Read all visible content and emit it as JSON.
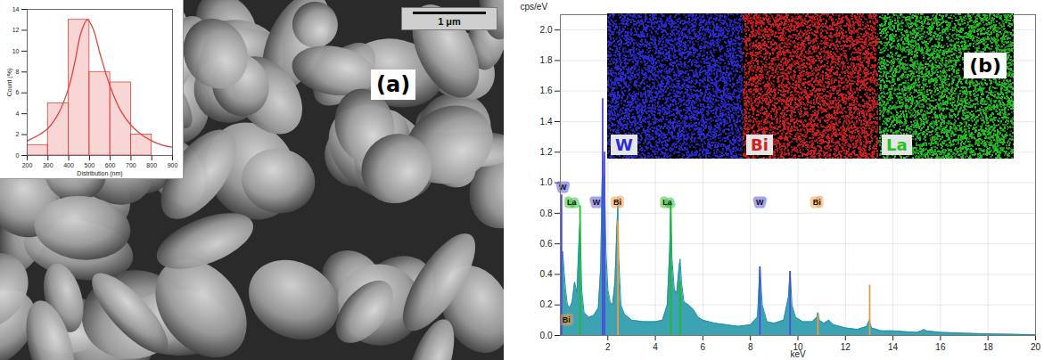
{
  "panels": [
    {
      "label": "(a)",
      "scale_bar": "1 μm"
    },
    {
      "label": "(b)",
      "maps": [
        {
          "element": "W",
          "color": "#2b2bd6"
        },
        {
          "element": "Bi",
          "color": "#d42020"
        },
        {
          "element": "La",
          "color": "#22c422"
        }
      ]
    }
  ],
  "chart_data": [
    {
      "type": "histogram",
      "x_label": "Distribution (nm)",
      "y_label": "Count (%)",
      "bins": [
        200,
        300,
        400,
        500,
        600,
        700,
        800,
        900
      ],
      "values": [
        1,
        5,
        13,
        8,
        7,
        2,
        0
      ],
      "color": "#e0443e",
      "fit": {
        "x": [
          200,
          250,
          300,
          350,
          400,
          430,
          460,
          490,
          520,
          550,
          600,
          650,
          700,
          750,
          800,
          850,
          900
        ],
        "values": [
          1.4,
          1.9,
          2.6,
          4.0,
          6.5,
          9.0,
          11.8,
          13.0,
          12.0,
          9.8,
          6.6,
          4.3,
          2.9,
          2.0,
          1.4,
          1.0,
          0.8
        ]
      },
      "xlim": [
        200,
        900
      ],
      "ylim": [
        0,
        14
      ],
      "xticks": [
        200,
        300,
        400,
        500,
        600,
        700,
        800,
        900
      ],
      "yticks": [
        0,
        2,
        4,
        6,
        8,
        10,
        12,
        14
      ]
    },
    {
      "type": "area",
      "x_label": "keV",
      "y_label": "cps/eV",
      "x": [
        0.05,
        0.1,
        0.17,
        0.22,
        0.3,
        0.4,
        0.5,
        0.6,
        0.7,
        0.78,
        0.83,
        0.9,
        1.0,
        1.2,
        1.4,
        1.6,
        1.7,
        1.75,
        1.78,
        1.82,
        1.86,
        1.92,
        2.0,
        2.1,
        2.2,
        2.3,
        2.38,
        2.42,
        2.46,
        2.55,
        2.7,
        3.0,
        3.5,
        4.0,
        4.3,
        4.5,
        4.6,
        4.65,
        4.7,
        4.8,
        4.9,
        5.0,
        5.04,
        5.1,
        5.2,
        5.4,
        5.6,
        5.8,
        6.0,
        6.5,
        7.0,
        7.5,
        8.0,
        8.3,
        8.4,
        8.5,
        8.7,
        9.0,
        9.4,
        9.6,
        9.67,
        9.75,
        9.9,
        10.2,
        10.6,
        10.8,
        10.84,
        10.9,
        11.1,
        11.3,
        11.5,
        12.0,
        12.5,
        12.9,
        13.0,
        13.1,
        13.5,
        14.0,
        15.0,
        15.2,
        15.3,
        15.4,
        16.0,
        17.0,
        18.0,
        19.0,
        20.0
      ],
      "values": [
        0.3,
        0.55,
        0.4,
        0.3,
        0.2,
        0.18,
        0.22,
        0.35,
        0.28,
        0.6,
        0.75,
        0.3,
        0.15,
        0.12,
        0.13,
        0.18,
        0.45,
        0.95,
        1.15,
        0.9,
        1.05,
        0.55,
        0.3,
        0.22,
        0.2,
        0.35,
        0.7,
        0.85,
        0.5,
        0.2,
        0.14,
        0.1,
        0.09,
        0.09,
        0.1,
        0.2,
        0.55,
        0.85,
        0.5,
        0.3,
        0.28,
        0.45,
        0.5,
        0.35,
        0.22,
        0.2,
        0.17,
        0.12,
        0.1,
        0.08,
        0.07,
        0.06,
        0.07,
        0.12,
        0.45,
        0.2,
        0.09,
        0.08,
        0.1,
        0.25,
        0.42,
        0.2,
        0.12,
        0.09,
        0.09,
        0.12,
        0.15,
        0.1,
        0.08,
        0.1,
        0.07,
        0.05,
        0.04,
        0.06,
        0.1,
        0.05,
        0.03,
        0.03,
        0.02,
        0.03,
        0.04,
        0.03,
        0.02,
        0.015,
        0.01,
        0.008,
        0.005
      ],
      "color": "#1b93a6",
      "element_colors": {
        "W": "#4b4be0",
        "La": "#22bb22",
        "Bi": "#f09a40"
      },
      "element_lines": [
        {
          "element": "W",
          "x": 0.05,
          "y": 0.92
        },
        {
          "element": "W",
          "x": 1.78,
          "y": 1.55
        },
        {
          "element": "W",
          "x": 1.86,
          "y": 1.2
        },
        {
          "element": "W",
          "x": 8.4,
          "y": 0.45
        },
        {
          "element": "W",
          "x": 9.67,
          "y": 0.42
        },
        {
          "element": "La",
          "x": 0.83,
          "y": 0.85
        },
        {
          "element": "La",
          "x": 4.65,
          "y": 0.85
        },
        {
          "element": "La",
          "x": 5.04,
          "y": 0.35
        },
        {
          "element": "Bi",
          "x": 2.42,
          "y": 0.75
        },
        {
          "element": "Bi",
          "x": 10.84,
          "y": 0.13
        },
        {
          "element": "Bi",
          "x": 13.02,
          "y": 0.33
        }
      ],
      "element_labels": [
        {
          "label": "W",
          "element": "W",
          "x": 0.1,
          "y": 0.97
        },
        {
          "label": "La",
          "element": "La",
          "x": 0.48,
          "y": 0.87
        },
        {
          "label": "W",
          "element": "W",
          "x": 1.52,
          "y": 0.87
        },
        {
          "label": "Bi",
          "element": "Bi",
          "x": 2.4,
          "y": 0.87
        },
        {
          "label": "La",
          "element": "La",
          "x": 4.5,
          "y": 0.87
        },
        {
          "label": "W",
          "element": "W",
          "x": 8.4,
          "y": 0.87
        },
        {
          "label": "Bi",
          "element": "Bi",
          "x": 10.8,
          "y": 0.87
        },
        {
          "label": "Bi",
          "element": "Bi",
          "x": 0.25,
          "y": 0.1
        }
      ],
      "xlim": [
        0,
        20
      ],
      "ylim": [
        0,
        2.1
      ],
      "xticks": [
        2,
        4,
        6,
        8,
        10,
        12,
        14,
        16,
        18,
        20
      ],
      "yticks": [
        {
          "value": 0,
          "label": "0.0"
        },
        {
          "value": 0.2,
          "label": "0.2"
        },
        {
          "value": 0.4,
          "label": "0.4"
        },
        {
          "value": 0.6,
          "label": "0.6"
        },
        {
          "value": 0.8,
          "label": "0.8"
        },
        {
          "value": 1.0,
          "label": "1.0"
        },
        {
          "value": 1.2,
          "label": "1.2"
        },
        {
          "value": 1.4,
          "label": "1.4"
        },
        {
          "value": 1.6,
          "label": "1.6"
        },
        {
          "value": 1.8,
          "label": "1.8"
        },
        {
          "value": 2.0,
          "label": "2.0"
        }
      ],
      "grid": true
    }
  ]
}
